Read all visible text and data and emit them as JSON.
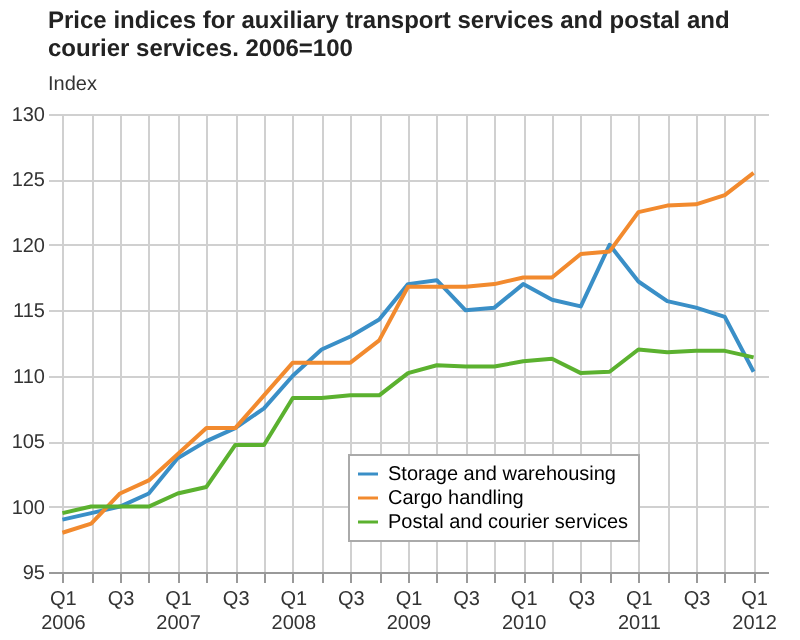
{
  "chart_data": {
    "type": "line",
    "title": "Price indices for auxiliary transport services and postal and courier services. 2006=100",
    "ylabel": "Index",
    "categories": [
      "Q1 2006",
      null,
      "Q3",
      null,
      "Q1 2007",
      null,
      "Q3",
      null,
      "Q1 2008",
      null,
      "Q3",
      null,
      "Q1 2009",
      null,
      "Q3",
      null,
      "Q1 2010",
      null,
      "Q3",
      null,
      "Q1 2011",
      null,
      "Q3",
      null,
      "Q1 2012"
    ],
    "series": [
      {
        "name": "Storage and warehousing",
        "color": "#3a8fc7",
        "values": [
          99,
          99.5,
          100,
          101,
          103.7,
          105,
          106,
          107.5,
          110,
          112,
          113,
          114.3,
          117,
          117.3,
          115,
          115.2,
          117,
          115.8,
          115.3,
          120,
          117.2,
          115.7,
          115.2,
          114.5,
          110.3
        ]
      },
      {
        "name": "Cargo handling",
        "color": "#f28a2e",
        "values": [
          98,
          98.7,
          101,
          102,
          104,
          106,
          106,
          108.5,
          111,
          111,
          111,
          112.7,
          116.8,
          116.8,
          116.8,
          117,
          117.5,
          117.5,
          119.3,
          119.5,
          122.5,
          123,
          123.1,
          123.8,
          125.5
        ]
      },
      {
        "name": "Postal and courier services",
        "color": "#5bb12f",
        "values": [
          99.5,
          100,
          100,
          100,
          101,
          101.5,
          104.7,
          104.7,
          108.3,
          108.3,
          108.5,
          108.5,
          110.2,
          110.8,
          110.7,
          110.7,
          111.1,
          111.3,
          110.2,
          110.3,
          112,
          111.8,
          111.9,
          111.9,
          111.4
        ]
      }
    ],
    "ylim": [
      95,
      130
    ],
    "yticks": [
      95,
      100,
      105,
      110,
      115,
      120,
      125,
      130
    ],
    "grid": true,
    "legend": "bottom right",
    "marker": "none",
    "line_style": "solid"
  }
}
